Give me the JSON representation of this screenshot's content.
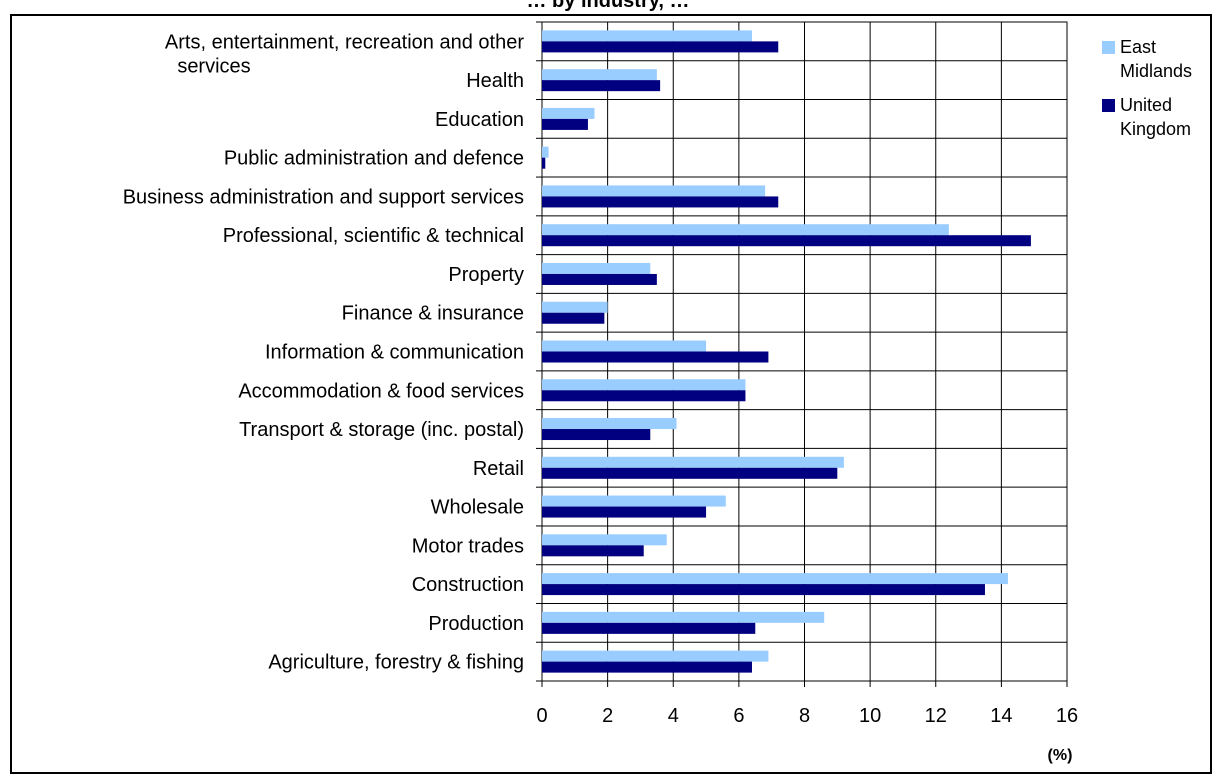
{
  "chart_data": {
    "type": "bar",
    "orientation": "horizontal",
    "title": "… by industry, …",
    "categories": [
      "Arts, entertainment, recreation and other services",
      "Health",
      "Education",
      "Public administration and defence",
      "Business administration and support services",
      "Professional, scientific & technical",
      "Property",
      "Finance & insurance",
      "Information & communication",
      "Accommodation & food services",
      "Transport & storage (inc. postal)",
      "Retail",
      "Wholesale",
      "Motor trades",
      "Construction",
      "Production",
      "Agriculture, forestry & fishing"
    ],
    "series": [
      {
        "name": "East Midlands",
        "color": "#99ccff",
        "values": [
          6.4,
          3.5,
          1.6,
          0.2,
          6.8,
          12.4,
          3.3,
          2.0,
          5.0,
          6.2,
          4.1,
          9.2,
          5.6,
          3.8,
          14.2,
          8.6,
          6.9
        ]
      },
      {
        "name": "United Kingdom",
        "color": "#000080",
        "values": [
          7.2,
          3.6,
          1.4,
          0.1,
          7.2,
          14.9,
          3.5,
          1.9,
          6.9,
          6.2,
          3.3,
          9.0,
          5.0,
          3.1,
          13.5,
          6.5,
          6.4
        ]
      }
    ],
    "xlim": [
      0,
      16
    ],
    "xticks": [
      "0",
      "2",
      "4",
      "6",
      "8",
      "10",
      "12",
      "14",
      "16"
    ],
    "xlabel": "(%)",
    "ylabel": "",
    "grid": true,
    "legend_position": "right"
  }
}
